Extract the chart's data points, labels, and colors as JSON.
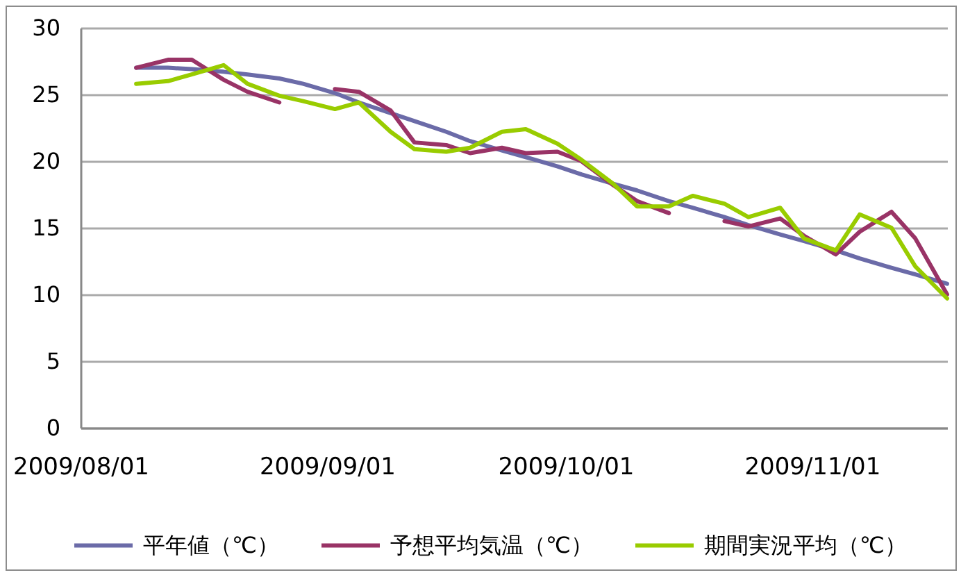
{
  "chart_data": {
    "type": "line",
    "x": [
      "2009-08-08",
      "2009-08-12",
      "2009-08-15",
      "2009-08-19",
      "2009-08-22",
      "2009-08-26",
      "2009-08-29",
      "2009-09-02",
      "2009-09-05",
      "2009-09-09",
      "2009-09-12",
      "2009-09-16",
      "2009-09-19",
      "2009-09-23",
      "2009-09-26",
      "2009-09-30",
      "2009-10-03",
      "2009-10-07",
      "2009-10-10",
      "2009-10-14",
      "2009-10-17",
      "2009-10-21",
      "2009-10-24",
      "2009-10-28",
      "2009-10-31",
      "2009-11-04",
      "2009-11-07",
      "2009-11-11",
      "2009-11-14",
      "2009-11-18"
    ],
    "series": [
      {
        "name": "平年値（℃）",
        "color": "#6b6ba8",
        "values": [
          27.0,
          27.0,
          26.9,
          26.7,
          26.5,
          26.2,
          25.8,
          25.1,
          24.4,
          23.6,
          23.0,
          22.2,
          21.5,
          20.8,
          20.3,
          19.6,
          19.0,
          18.3,
          17.8,
          17.0,
          16.5,
          15.8,
          15.2,
          14.5,
          14.0,
          13.3,
          12.7,
          12.0,
          11.5,
          10.8
        ]
      },
      {
        "name": "予想平均気温（℃）",
        "color": "#993366",
        "values": [
          27.0,
          27.6,
          27.6,
          26.1,
          25.2,
          24.4,
          null,
          25.4,
          25.2,
          23.8,
          21.4,
          21.2,
          20.6,
          21.0,
          20.6,
          20.7,
          20.0,
          18.2,
          17.0,
          16.1,
          null,
          15.5,
          15.1,
          15.7,
          14.4,
          13.0,
          14.7,
          16.2,
          14.2,
          10.0
        ]
      },
      {
        "name": "期間実況平均（℃）",
        "color": "#99cc00",
        "values": [
          25.8,
          26.0,
          26.5,
          27.2,
          25.8,
          24.9,
          24.5,
          23.9,
          24.4,
          22.2,
          20.9,
          20.7,
          21.0,
          22.2,
          22.4,
          21.3,
          20.1,
          18.3,
          16.6,
          16.6,
          17.4,
          16.8,
          15.8,
          16.5,
          14.2,
          13.3,
          16.0,
          15.0,
          12.1,
          9.7
        ]
      }
    ],
    "xlim": [
      "2009-08-01",
      "2009-11-18"
    ],
    "xticks": [
      {
        "value": "2009-08-01",
        "label": "2009/08/01"
      },
      {
        "value": "2009-09-01",
        "label": "2009/09/01"
      },
      {
        "value": "2009-10-01",
        "label": "2009/10/01"
      },
      {
        "value": "2009-11-01",
        "label": "2009/11/01"
      }
    ],
    "ylim": [
      0,
      30
    ],
    "yticks": [
      0,
      5,
      10,
      15,
      20,
      25,
      30
    ],
    "grid": "y",
    "legend": "bottom"
  }
}
